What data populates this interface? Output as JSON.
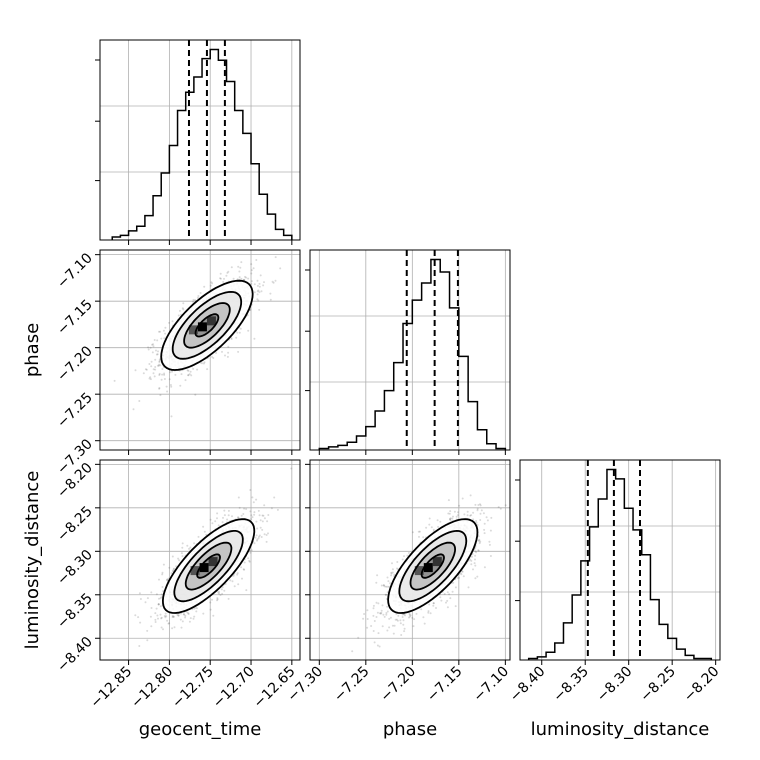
{
  "chart_data": {
    "type": "corner",
    "parameters": [
      "geocent_time",
      "phase",
      "luminosity_distance"
    ],
    "axis_labels": {
      "geocent_time": "geocent_time",
      "phase": "phase",
      "luminosity_distance": "luminosity_distance"
    },
    "ranges": {
      "geocent_time": [
        -12.885,
        -12.64
      ],
      "phase": [
        -7.31,
        -7.095
      ],
      "luminosity_distance": [
        -8.425,
        -8.195
      ]
    },
    "ticks": {
      "geocent_time": [
        "−12.85",
        "−12.80",
        "−12.75",
        "−12.70",
        "−12.65"
      ],
      "phase": [
        "−7.30",
        "−7.25",
        "−7.20",
        "−7.15",
        "−7.10"
      ],
      "luminosity_distance": [
        "−8.40",
        "−8.35",
        "−8.30",
        "−8.25",
        "−8.20"
      ]
    },
    "tick_values": {
      "geocent_time": [
        -12.85,
        -12.8,
        -12.75,
        -12.7,
        -12.65
      ],
      "phase": [
        -7.3,
        -7.25,
        -7.2,
        -7.15,
        -7.1
      ],
      "luminosity_distance": [
        -8.4,
        -8.35,
        -8.3,
        -8.25,
        -8.2
      ]
    },
    "quantiles": {
      "geocent_time": [
        -12.776,
        -12.754,
        -12.732
      ],
      "phase": [
        -7.206,
        -7.176,
        -7.151
      ],
      "luminosity_distance": [
        -8.347,
        -8.317,
        -8.287
      ]
    },
    "histograms": {
      "geocent_time": {
        "edges": [
          -12.87,
          -12.86,
          -12.85,
          -12.84,
          -12.83,
          -12.82,
          -12.81,
          -12.8,
          -12.79,
          -12.78,
          -12.77,
          -12.76,
          -12.75,
          -12.74,
          -12.73,
          -12.72,
          -12.71,
          -12.7,
          -12.69,
          -12.68,
          -12.67,
          -12.66,
          -12.65
        ],
        "counts": [
          2,
          3,
          6,
          9,
          16,
          29,
          44,
          62,
          85,
          97,
          107,
          119,
          125,
          118,
          104,
          85,
          70,
          50,
          30,
          17,
          7,
          3
        ]
      },
      "phase": {
        "edges": [
          -7.3,
          -7.29,
          -7.28,
          -7.27,
          -7.26,
          -7.25,
          -7.24,
          -7.23,
          -7.22,
          -7.21,
          -7.2,
          -7.19,
          -7.18,
          -7.17,
          -7.16,
          -7.15,
          -7.14,
          -7.13,
          -7.12,
          -7.11,
          -7.1
        ],
        "counts": [
          1,
          2,
          3,
          5,
          9,
          15,
          25,
          38,
          56,
          81,
          96,
          107,
          122,
          114,
          91,
          60,
          31,
          13,
          4,
          1
        ]
      },
      "luminosity_distance": {
        "edges": [
          -8.415,
          -8.405,
          -8.395,
          -8.385,
          -8.375,
          -8.365,
          -8.355,
          -8.345,
          -8.335,
          -8.325,
          -8.315,
          -8.305,
          -8.295,
          -8.285,
          -8.275,
          -8.265,
          -8.255,
          -8.245,
          -8.235,
          -8.225,
          -8.215,
          -8.205
        ],
        "counts": [
          1,
          2,
          5,
          11,
          24,
          42,
          64,
          86,
          104,
          123,
          117,
          98,
          84,
          68,
          39,
          23,
          14,
          7,
          3,
          1,
          1
        ]
      }
    },
    "correlations": {
      "phase|geocent_time": {
        "mean": [
          -12.754,
          -7.176
        ],
        "sd": [
          0.028,
          0.024
        ],
        "rho": 0.7
      },
      "luminosity_distance|geocent_time": {
        "mean": [
          -12.752,
          -8.317
        ],
        "sd": [
          0.028,
          0.027
        ],
        "rho": 0.75
      },
      "luminosity_distance|phase": {
        "mean": [
          -7.178,
          -8.317
        ],
        "sd": [
          0.024,
          0.027
        ],
        "rho": 0.72
      }
    },
    "contour_levels_sigma": [
      0.5,
      1.0,
      1.5,
      2.0
    ],
    "grid": true,
    "colors": {
      "line": "#000000",
      "grid": "#b0b0b0",
      "scatter": "#555555"
    }
  }
}
